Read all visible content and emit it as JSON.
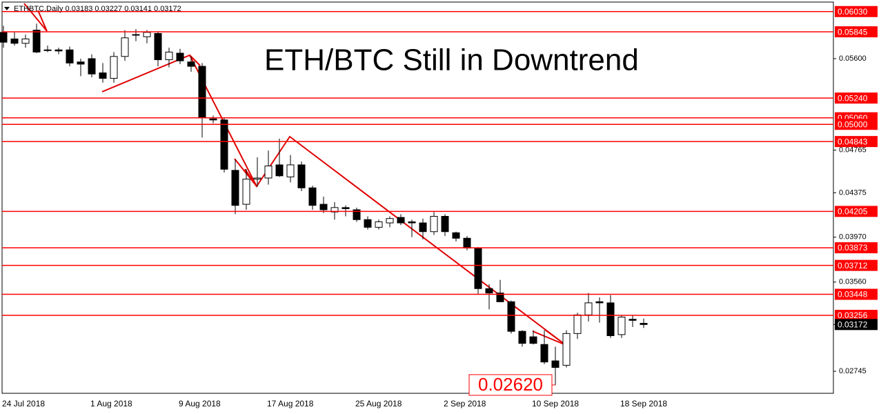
{
  "chart_data": {
    "type": "candlestick",
    "header": "ETHBTC,Daily  0.03183 0.03227 0.03141 0.03172",
    "title": "ETH/BTC Still in Downtrend",
    "categories": [
      "24 Jul 2018",
      null,
      null,
      null,
      null,
      null,
      null,
      null,
      "1 Aug 2018",
      null,
      null,
      null,
      null,
      null,
      null,
      null,
      "9 Aug 2018",
      null,
      null,
      null,
      null,
      null,
      null,
      null,
      "17 Aug 2018",
      null,
      null,
      null,
      null,
      null,
      null,
      null,
      "25 Aug 2018",
      null,
      null,
      null,
      null,
      null,
      null,
      null,
      "2 Sep 2018",
      null,
      null,
      null,
      null,
      null,
      null,
      null,
      "10 Sep 2018",
      null,
      null,
      null,
      null,
      null,
      null,
      null,
      "18 Sep 2018",
      null,
      null
    ],
    "open": [
      0.0584,
      0.0578,
      0.0574,
      0.0586,
      0.0568,
      0.0568,
      0.0568,
      0.0557,
      0.056,
      0.0547,
      0.0542,
      0.0562,
      0.0582,
      0.058,
      0.0583,
      0.0559,
      0.0565,
      0.0557,
      0.0553,
      0.0505,
      0.0504,
      0.0458,
      0.0427,
      0.045,
      0.0451,
      0.0463,
      0.0452,
      0.0463,
      0.0442,
      0.0427,
      0.042,
      0.0424,
      0.0422,
      0.0413,
      0.0406,
      0.041,
      0.0415,
      0.0411,
      0.041,
      0.0402,
      0.0416,
      0.0401,
      0.0396,
      0.0387,
      0.035,
      0.0346,
      0.0338,
      0.0311,
      0.0306,
      0.0299,
      0.0284,
      0.028,
      0.0309,
      0.0326,
      0.0338,
      0.0337,
      0.0308,
      0.0322,
      0.03183
    ],
    "high": [
      0.059,
      0.0584,
      0.0582,
      0.0592,
      0.0572,
      0.057,
      0.0571,
      0.056,
      0.0564,
      0.0556,
      0.0566,
      0.0586,
      0.0587,
      0.0586,
      0.0585,
      0.057,
      0.0569,
      0.0562,
      0.0556,
      0.0508,
      0.0506,
      0.0468,
      0.0459,
      0.047,
      0.0476,
      0.0487,
      0.0472,
      0.0466,
      0.0444,
      0.0434,
      0.0429,
      0.0426,
      0.0424,
      0.0416,
      0.0413,
      0.0416,
      0.0418,
      0.0413,
      0.0414,
      0.042,
      0.0418,
      0.0402,
      0.0398,
      0.0388,
      0.0354,
      0.0358,
      0.0339,
      0.0312,
      0.0312,
      0.0312,
      0.0297,
      0.0312,
      0.0328,
      0.0346,
      0.0342,
      0.0344,
      0.0326,
      0.0326,
      0.03227
    ],
    "low": [
      0.057,
      0.0572,
      0.057,
      0.0565,
      0.0566,
      0.0564,
      0.0553,
      0.0544,
      0.0543,
      0.0538,
      0.0538,
      0.0558,
      0.0576,
      0.0574,
      0.0553,
      0.0552,
      0.0555,
      0.0548,
      0.0488,
      0.0501,
      0.0456,
      0.0418,
      0.0422,
      0.0443,
      0.0445,
      0.0452,
      0.0447,
      0.0439,
      0.0422,
      0.0419,
      0.0413,
      0.0416,
      0.0411,
      0.0404,
      0.0404,
      0.0406,
      0.0408,
      0.0397,
      0.0395,
      0.0399,
      0.0398,
      0.0393,
      0.0385,
      0.0345,
      0.0331,
      0.0338,
      0.0309,
      0.0297,
      0.0299,
      0.0281,
      0.0262,
      0.0278,
      0.0304,
      0.032,
      0.0319,
      0.0305,
      0.0305,
      0.0315,
      0.03141
    ],
    "close": [
      0.0575,
      0.0574,
      0.0578,
      0.0566,
      0.0568,
      0.0567,
      0.0556,
      0.0555,
      0.0546,
      0.0542,
      0.0562,
      0.0579,
      0.0582,
      0.0584,
      0.0559,
      0.0566,
      0.0558,
      0.0553,
      0.0506,
      0.0504,
      0.0459,
      0.0426,
      0.045,
      0.0451,
      0.0462,
      0.0453,
      0.0463,
      0.0442,
      0.0426,
      0.0422,
      0.0424,
      0.0423,
      0.0413,
      0.0406,
      0.0411,
      0.0414,
      0.041,
      0.041,
      0.0402,
      0.0416,
      0.0402,
      0.0396,
      0.0387,
      0.035,
      0.0346,
      0.0338,
      0.0311,
      0.03,
      0.03,
      0.0283,
      0.0278,
      0.0309,
      0.0326,
      0.0337,
      0.0337,
      0.0307,
      0.0324,
      0.0321,
      0.03172
    ],
    "up_color": "#ffffff",
    "down_color": "#000000",
    "ylim": [
      0.02544,
      0.06104
    ],
    "yticks": [
      {
        "value": 0.056,
        "label": "0.05600"
      },
      {
        "value": 0.04765,
        "label": "0.04765"
      },
      {
        "value": 0.04375,
        "label": "0.04375"
      },
      {
        "value": 0.0397,
        "label": "0.03970"
      },
      {
        "value": 0.0356,
        "label": "0.03560"
      },
      {
        "value": 0.02745,
        "label": "0.02745"
      }
    ],
    "levels": [
      {
        "value": 0.0603,
        "label": "0.06030"
      },
      {
        "value": 0.05845,
        "label": "0.05845"
      },
      {
        "value": 0.0524,
        "label": "0.05240"
      },
      {
        "value": 0.0506,
        "label": "0.05060"
      },
      {
        "value": 0.05,
        "label": "0.05000"
      },
      {
        "value": 0.04843,
        "label": "0.04843"
      },
      {
        "value": 0.04205,
        "label": "0.04205"
      },
      {
        "value": 0.03873,
        "label": "0.03873"
      },
      {
        "value": 0.03712,
        "label": "0.03712"
      },
      {
        "value": 0.03448,
        "label": "0.03448"
      },
      {
        "value": 0.03256,
        "label": "0.03256"
      }
    ],
    "level_color": "#ff0000",
    "current": {
      "value": 0.03172,
      "label": "0.03172"
    },
    "annotation": {
      "value": 0.0262,
      "label": "0.02620"
    }
  }
}
